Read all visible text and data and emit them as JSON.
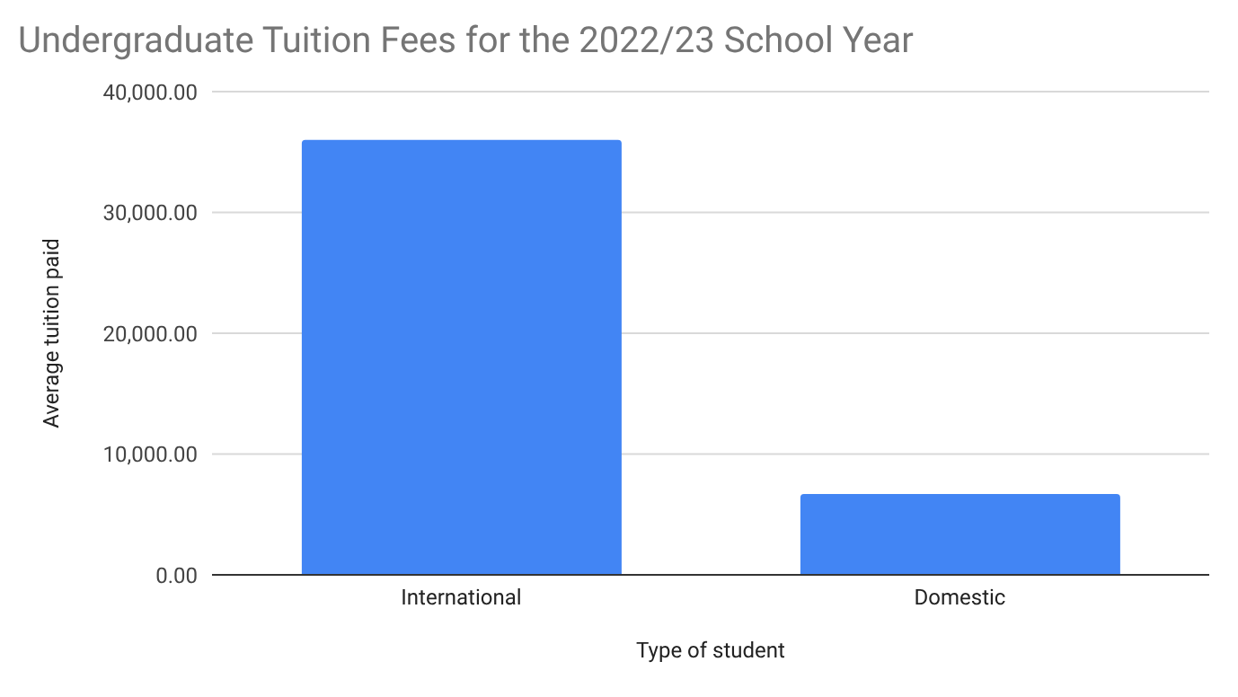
{
  "chart_data": {
    "type": "bar",
    "title": "Undergraduate Tuition Fees for the 2022/23 School Year",
    "xlabel": "Type of student",
    "ylabel": "Average tuition paid",
    "categories": [
      "International",
      "Domestic"
    ],
    "values": [
      36000,
      6700
    ],
    "color": "#4285f4",
    "ylim": [
      0,
      40000
    ],
    "yticks": [
      {
        "value": 0,
        "label": "0.00"
      },
      {
        "value": 10000,
        "label": "10,000.00"
      },
      {
        "value": 20000,
        "label": "20,000.00"
      },
      {
        "value": 30000,
        "label": "30,000.00"
      },
      {
        "value": 40000,
        "label": "40,000.00"
      }
    ],
    "grid": "y",
    "legend": false
  }
}
